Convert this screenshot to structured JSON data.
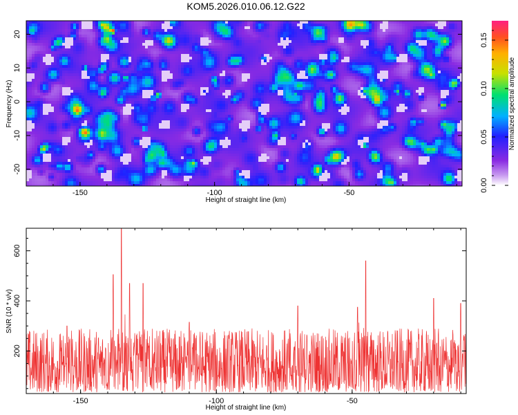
{
  "chart_data": [
    {
      "type": "heatmap",
      "title": "KOM5.2026.010.06.12.G22",
      "xlabel": "Height of straight line (km)",
      "ylabel": "Frequency (Hz)",
      "xlim": [
        -170,
        -8
      ],
      "ylim": [
        -25,
        24
      ],
      "x_ticks": [
        -150,
        -100,
        -50
      ],
      "x_tick_labels": [
        "-150",
        "-100",
        "-50"
      ],
      "y_ticks": [
        20,
        10,
        0,
        -10,
        -20
      ],
      "y_tick_labels": [
        "20",
        "10",
        "0",
        "-10",
        "-20"
      ],
      "colorbar": {
        "label": "Normalized spectral amplitude",
        "range": [
          0,
          0.17
        ],
        "ticks": [
          0,
          0.05,
          0.1,
          0.15
        ],
        "tick_labels": [
          "0.00",
          "0.05",
          "0.10",
          "0.15"
        ]
      },
      "hotspots": [
        {
          "x": -138,
          "y": 21,
          "value": 0.16
        },
        {
          "x": -133,
          "y": 7,
          "value": 0.1
        },
        {
          "x": -121,
          "y": 2,
          "value": 0.11
        },
        {
          "x": -126,
          "y": -8,
          "value": 0.09
        },
        {
          "x": -110,
          "y": -18,
          "value": 0.08
        },
        {
          "x": -70,
          "y": 2,
          "value": 0.09
        },
        {
          "x": -44,
          "y": -13,
          "value": 0.1
        },
        {
          "x": -32,
          "y": 3,
          "value": 0.1
        },
        {
          "x": -15,
          "y": -1,
          "value": 0.12
        },
        {
          "x": -58,
          "y": -17,
          "value": 0.09
        },
        {
          "x": -160,
          "y": 16,
          "value": 0.08
        },
        {
          "x": -148,
          "y": 10,
          "value": 0.09
        }
      ]
    },
    {
      "type": "line",
      "title": "",
      "xlabel": "Height of straight line (km)",
      "ylabel": "SNR (10 * v/v)",
      "xlim": [
        -170,
        -8
      ],
      "ylim": [
        30,
        690
      ],
      "x_ticks": [
        -150,
        -100,
        -50
      ],
      "x_tick_labels": [
        "-150",
        "-100",
        "-50"
      ],
      "y_ticks": [
        200,
        400,
        600
      ],
      "y_tick_labels": [
        "200",
        "400",
        "600"
      ],
      "line_color": "#ee3333",
      "baseline_mean": 150,
      "noise_range": [
        35,
        290
      ],
      "peaks": [
        {
          "x": -135,
          "y": 690
        },
        {
          "x": -138,
          "y": 505
        },
        {
          "x": -132,
          "y": 470
        },
        {
          "x": -127,
          "y": 470
        },
        {
          "x": -45,
          "y": 560
        },
        {
          "x": -48,
          "y": 375
        },
        {
          "x": -70,
          "y": 380
        },
        {
          "x": -20,
          "y": 410
        },
        {
          "x": -10,
          "y": 390
        },
        {
          "x": -155,
          "y": 300
        },
        {
          "x": -110,
          "y": 315
        }
      ]
    }
  ]
}
